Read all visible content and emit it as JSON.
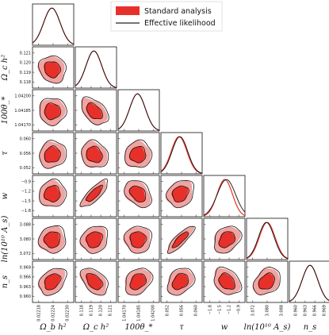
{
  "chart_data": {
    "type": "triangle-corner",
    "legend": {
      "placement": "top-right",
      "entries": [
        {
          "name": "Standard analysis",
          "style": "filled",
          "color": "#e8302a"
        },
        {
          "name": "Effective likelihood",
          "style": "line",
          "color": "#222222"
        }
      ]
    },
    "colors": {
      "inner": "#e8302a",
      "outer": "#f0a3a0",
      "line": "#111111",
      "red_line": "#e8302a"
    },
    "parameters": [
      {
        "key": "omegab",
        "label": "Ω_b h²",
        "tick_labels": [
          "0.02218",
          "0.02224",
          "0.02230"
        ],
        "mean_frac": 0.47,
        "width": 0.2
      },
      {
        "key": "omegac",
        "label": "Ω_c h²",
        "tick_labels": [
          "0.118",
          "0.119",
          "0.120",
          "0.121"
        ],
        "y_tick_labels": [
          "0.121",
          "0.120",
          "0.119",
          "0.118"
        ],
        "mean_frac": 0.45,
        "width": 0.19
      },
      {
        "key": "theta",
        "label": "100θ_*",
        "tick_labels": [
          "1.04170",
          "1.04185",
          "1.04200"
        ],
        "y_tick_labels": [
          "1.04200",
          "1.04185",
          "1.04170"
        ],
        "mean_frac": 0.47,
        "width": 0.19
      },
      {
        "key": "tau",
        "label": "τ",
        "tick_labels": [
          "0.052",
          "0.056",
          "0.060"
        ],
        "y_tick_labels": [
          "0.060",
          "0.056",
          "0.052"
        ],
        "mean_frac": 0.46,
        "width": 0.19
      },
      {
        "key": "w",
        "label": "w",
        "tick_labels": [
          "−1.8",
          "−1.5",
          "−1.2",
          "−0.9"
        ],
        "y_tick_labels": [
          "−0.9",
          "−1.2",
          "−1.5",
          "−1.8"
        ],
        "mean_frac": 0.55,
        "width": 0.22
      },
      {
        "key": "lnAs",
        "label": "ln(10¹⁰ A_s)",
        "tick_labels": [
          "3.072",
          "3.080",
          "3.088"
        ],
        "y_tick_labels": [
          "3.088",
          "3.080",
          "3.072"
        ],
        "mean_frac": 0.48,
        "width": 0.19
      },
      {
        "key": "ns",
        "label": "n_s",
        "tick_labels": [
          "0.960",
          "0.963",
          "0.966",
          "0.969"
        ],
        "y_tick_labels": [
          "0.969",
          "0.966",
          "0.963",
          "0.960"
        ],
        "mean_frac": 0.5,
        "width": 0.19
      }
    ],
    "correlations": [
      {
        "row": 1,
        "col": 0,
        "rho": -0.1
      },
      {
        "row": 2,
        "col": 0,
        "rho": 0.0
      },
      {
        "row": 2,
        "col": 1,
        "rho": -0.45
      },
      {
        "row": 3,
        "col": 0,
        "rho": 0.1
      },
      {
        "row": 3,
        "col": 1,
        "rho": -0.15
      },
      {
        "row": 3,
        "col": 2,
        "rho": 0.05
      },
      {
        "row": 4,
        "col": 0,
        "rho": 0.05
      },
      {
        "row": 4,
        "col": 1,
        "rho": 0.8
      },
      {
        "row": 4,
        "col": 2,
        "rho": -0.35
      },
      {
        "row": 4,
        "col": 3,
        "rho": 0.2
      },
      {
        "row": 5,
        "col": 0,
        "rho": 0.05
      },
      {
        "row": 5,
        "col": 1,
        "rho": 0.15
      },
      {
        "row": 5,
        "col": 2,
        "rho": 0.0
      },
      {
        "row": 5,
        "col": 3,
        "rho": 0.85
      },
      {
        "row": 5,
        "col": 4,
        "rho": 0.3
      },
      {
        "row": 6,
        "col": 0,
        "rho": 0.35
      },
      {
        "row": 6,
        "col": 1,
        "rho": -0.45
      },
      {
        "row": 6,
        "col": 2,
        "rho": 0.3
      },
      {
        "row": 6,
        "col": 3,
        "rho": 0.3
      },
      {
        "row": 6,
        "col": 4,
        "rho": -0.3
      },
      {
        "row": 6,
        "col": 5,
        "rho": 0.3
      }
    ]
  }
}
